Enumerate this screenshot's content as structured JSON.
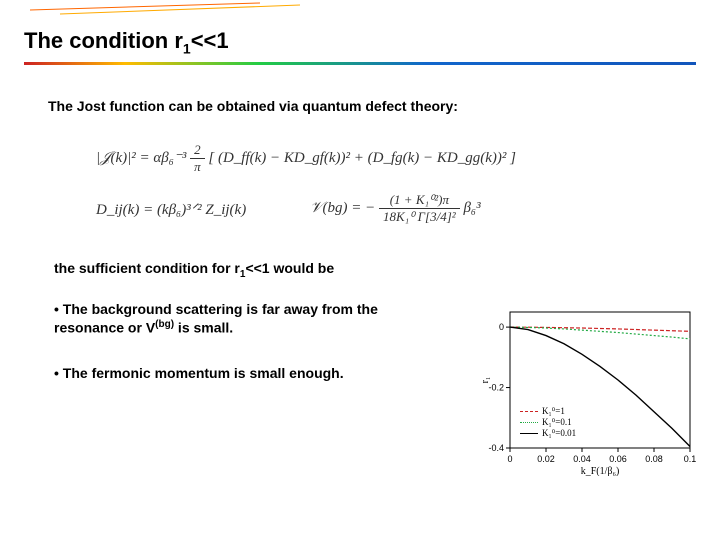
{
  "title_prefix": "The condition r",
  "title_sub": "1",
  "title_suffix": "<<1",
  "intro": "The Jost function can be obtained via quantum defect theory:",
  "condition_prefix": "the sufficient condition for r",
  "condition_sub": "1",
  "condition_suffix": "<<1 would be",
  "bullet1_a": "• The background scattering is far away from the resonance or V",
  "bullet1_sup": "(bg)",
  "bullet1_b": " is small.",
  "bullet2": "• The fermonic momentum is small enough.",
  "equations": {
    "jost_lhs": "|𝒥(k)|²",
    "jost_rhs_prefix": " = αβ₆⁻³ ",
    "jost_frac_num": "2",
    "jost_frac_den": "π",
    "jost_rhs_body": " [ (D_ff(k) − KD_gf(k))²  +  (D_fg(k) − KD_gg(k))² ]",
    "dij": "D_ij(k) = (kβ₆)³ᐟ² Z_ij(k)",
    "vbg_lhs": "𝒱(bg)",
    "vbg_eq": " = − ",
    "vbg_num": "(1 + K₁⁰²)π",
    "vbg_den": "18K₁⁰ Γ[3/4]²",
    "vbg_tail": " β₆³"
  },
  "chart": {
    "type": "line",
    "xlim": [
      0,
      0.1
    ],
    "ylim": [
      -0.4,
      0.05
    ],
    "xtick_vals": [
      0,
      0.02,
      0.04,
      0.06,
      0.08,
      0.1
    ],
    "xtick_labels": [
      "0",
      "0.02",
      "0.04",
      "0.06",
      "0.08",
      "0.1"
    ],
    "ytick_vals": [
      -0.4,
      -0.2,
      0
    ],
    "ytick_labels": [
      "-0.4",
      "-0.2",
      "0"
    ],
    "xlabel": "k_F(1/β₆)",
    "ylabel": "r₁",
    "background_color": "#ffffff",
    "axis_color": "#000000",
    "tick_fontsize": 9,
    "label_fontsize": 10,
    "series": [
      {
        "name": "K01",
        "legend": "K₁⁰=1",
        "color": "#cc2222",
        "dash": "4 2",
        "width": 1.2,
        "x": [
          0,
          0.01,
          0.02,
          0.03,
          0.04,
          0.05,
          0.06,
          0.07,
          0.08,
          0.09,
          0.1
        ],
        "y": [
          0,
          -0.0003,
          -0.001,
          -0.002,
          -0.003,
          -0.0045,
          -0.006,
          -0.008,
          -0.01,
          -0.012,
          -0.014
        ]
      },
      {
        "name": "K0_0p1",
        "legend": "K₁⁰=0.1",
        "color": "#22aa44",
        "dash": "2 2",
        "width": 1.2,
        "x": [
          0,
          0.01,
          0.02,
          0.03,
          0.04,
          0.05,
          0.06,
          0.07,
          0.08,
          0.09,
          0.1
        ],
        "y": [
          0,
          -0.001,
          -0.003,
          -0.006,
          -0.01,
          -0.014,
          -0.018,
          -0.023,
          -0.028,
          -0.033,
          -0.039
        ]
      },
      {
        "name": "K0_0p01",
        "legend": "K₁⁰=0.01",
        "color": "#000000",
        "dash": "",
        "width": 1.4,
        "x": [
          0,
          0.01,
          0.02,
          0.03,
          0.04,
          0.05,
          0.06,
          0.07,
          0.08,
          0.09,
          0.1
        ],
        "y": [
          0,
          -0.008,
          -0.028,
          -0.055,
          -0.09,
          -0.13,
          -0.175,
          -0.225,
          -0.28,
          -0.335,
          -0.395
        ]
      }
    ]
  },
  "top_accent": {
    "colors": [
      "#ff6600",
      "#ffaa00"
    ],
    "height": 1
  }
}
